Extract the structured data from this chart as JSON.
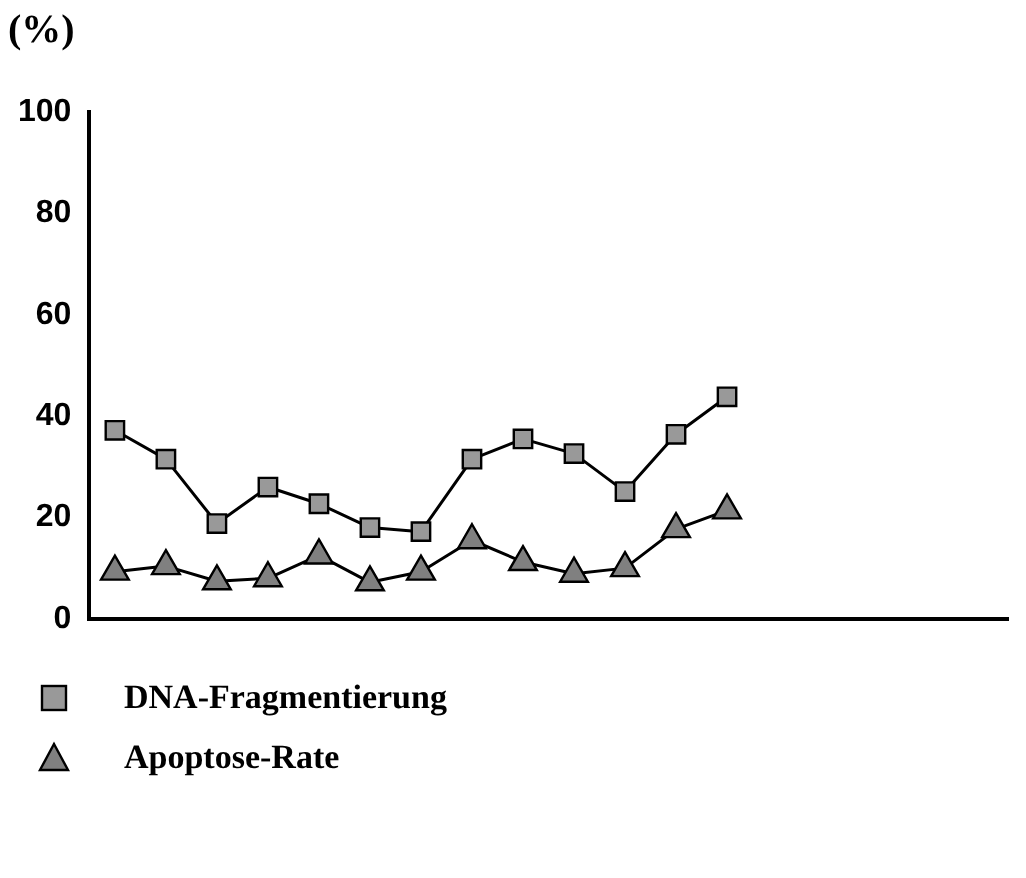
{
  "chart_data": {
    "type": "line",
    "ylabel": "(%)",
    "categories": [
      null,
      null,
      null,
      null,
      null,
      null,
      null,
      null,
      null,
      null,
      null,
      null,
      null,
      null,
      null,
      null,
      null,
      null
    ],
    "series": [
      {
        "name": "DNA-Fragmentierung",
        "color": "#999999",
        "marker": "square",
        "values": [
          37.2,
          31.5,
          18.8,
          26,
          22.7,
          18,
          17.2,
          31.5,
          35.5,
          32.6,
          25.1,
          36.4,
          43.8,
          null,
          null,
          null,
          null,
          null
        ]
      },
      {
        "name": "Apoptose-Rate",
        "color": "#808080",
        "marker": "triangle",
        "values": [
          9.3,
          10.4,
          7.4,
          8,
          12.5,
          7.2,
          9.3,
          15.5,
          11.2,
          8.9,
          10,
          17.7,
          21.4,
          null,
          null,
          null,
          null,
          null
        ]
      }
    ],
    "ylim": [
      0,
      100
    ],
    "yticks": [
      0,
      20,
      40,
      60,
      80,
      100
    ],
    "grid": false,
    "legend": "bottom left",
    "tick_labels": "y",
    "line_style": "solid"
  }
}
